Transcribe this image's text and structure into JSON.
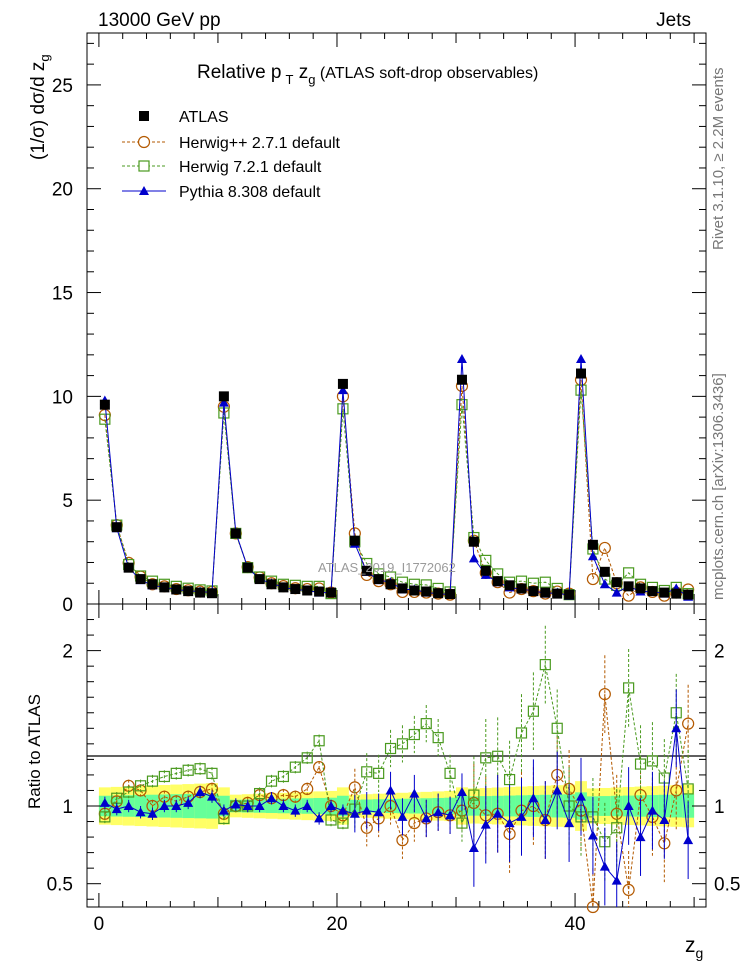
{
  "header": {
    "energy": "13000 GeV pp",
    "process": "Jets"
  },
  "side_text": {
    "rivet": "Rivet 3.1.10, ≥ 2.2M events",
    "source": "mcplots.cern.ch [arXiv:1306.3436]"
  },
  "watermark": "ATLAS_2019_I1772062",
  "chart_data": [
    {
      "type": "scatter",
      "title": "Relative p_T z_g (ATLAS soft-drop observables)",
      "title_parts": {
        "lead": "Relative p",
        "sub1": "T",
        "mid": " z",
        "sub2": "g",
        "rest": " (ATLAS soft-drop observables)"
      },
      "ylabel": "(1/σ) dσ/d z_g",
      "ylabel_parts": {
        "lead": "(1/σ) dσ/d z",
        "sub": "g"
      },
      "xlim": [
        -1,
        51
      ],
      "ylim": [
        0,
        27.5
      ],
      "yticks": [
        0,
        5,
        10,
        15,
        20,
        25
      ],
      "xticks": [
        0,
        20,
        40
      ],
      "legend_position": "top-left",
      "x": [
        0.5,
        1.5,
        2.5,
        3.5,
        4.5,
        5.5,
        6.5,
        7.5,
        8.5,
        9.5,
        10.5,
        11.5,
        12.5,
        13.5,
        14.5,
        15.5,
        16.5,
        17.5,
        18.5,
        19.5,
        20.5,
        21.5,
        22.5,
        23.5,
        24.5,
        25.5,
        26.5,
        27.5,
        28.5,
        29.5,
        30.5,
        31.5,
        32.5,
        33.5,
        34.5,
        35.5,
        36.5,
        37.5,
        38.5,
        39.5,
        40.5,
        41.5,
        42.5,
        43.5,
        44.5,
        45.5,
        46.5,
        47.5,
        48.5,
        49.5
      ],
      "series": [
        {
          "name": "ATLAS",
          "color": "#000000",
          "marker": "filled-square",
          "values": [
            9.6,
            3.7,
            1.75,
            1.2,
            0.95,
            0.8,
            0.7,
            0.62,
            0.55,
            0.52,
            10.0,
            3.4,
            1.75,
            1.2,
            0.95,
            0.8,
            0.72,
            0.65,
            0.6,
            0.55,
            10.6,
            3.05,
            1.6,
            1.2,
            0.95,
            0.75,
            0.65,
            0.6,
            0.52,
            0.48,
            10.8,
            3.0,
            1.6,
            1.1,
            0.9,
            0.75,
            0.62,
            0.55,
            0.5,
            0.45,
            11.1,
            2.85,
            1.55,
            1.05,
            0.85,
            0.75,
            0.62,
            0.55,
            0.5,
            0.45
          ]
        },
        {
          "name": "Herwig++ 2.7.1 default",
          "color": "#b35900",
          "marker": "open-circle",
          "dashed": true,
          "values": [
            9.1,
            3.8,
            1.98,
            1.32,
            0.95,
            0.85,
            0.72,
            0.66,
            0.6,
            0.58,
            9.5,
            3.4,
            1.78,
            1.28,
            1.0,
            0.86,
            0.76,
            0.72,
            0.75,
            0.55,
            10.0,
            3.4,
            1.4,
            1.1,
            0.95,
            0.58,
            0.58,
            0.55,
            0.5,
            0.45,
            10.5,
            3.05,
            1.5,
            1.05,
            0.55,
            0.72,
            0.62,
            0.5,
            0.6,
            0.5,
            10.8,
            1.2,
            2.7,
            1.0,
            0.4,
            0.8,
            0.58,
            0.4,
            0.55,
            0.7
          ]
        },
        {
          "name": "Herwig 7.2.1 default",
          "color": "#4a9a1f",
          "marker": "open-square",
          "dashed": true,
          "values": [
            8.9,
            3.8,
            1.9,
            1.35,
            1.1,
            0.95,
            0.85,
            0.76,
            0.68,
            0.63,
            9.2,
            3.4,
            1.75,
            1.3,
            1.1,
            0.95,
            0.9,
            0.85,
            0.85,
            0.5,
            9.4,
            3.0,
            1.95,
            1.45,
            1.3,
            1.05,
            0.95,
            0.92,
            0.75,
            0.58,
            9.6,
            3.2,
            2.1,
            1.45,
            1.05,
            1.1,
            1.0,
            1.05,
            0.75,
            0.45,
            10.3,
            2.65,
            1.2,
            0.9,
            1.5,
            0.95,
            0.8,
            0.65,
            0.8,
            0.5
          ]
        },
        {
          "name": "Pythia 8.308 default",
          "color": "#0000cc",
          "marker": "filled-triangle",
          "values": [
            9.8,
            3.65,
            1.75,
            1.15,
            0.9,
            0.8,
            0.7,
            0.63,
            0.6,
            0.55,
            9.7,
            3.45,
            1.75,
            1.2,
            1.0,
            0.8,
            0.7,
            0.65,
            0.55,
            0.55,
            10.3,
            2.9,
            1.55,
            1.15,
            1.05,
            0.7,
            0.7,
            0.55,
            0.5,
            0.45,
            11.8,
            2.2,
            1.4,
            1.05,
            0.8,
            0.7,
            0.65,
            0.5,
            0.55,
            0.4,
            11.8,
            2.3,
            0.95,
            0.55,
            0.85,
            0.6,
            0.6,
            0.5,
            0.75,
            0.35
          ]
        }
      ]
    },
    {
      "type": "scatter",
      "title": "",
      "ylabel": "Ratio to ATLAS",
      "xlabel": "z_g",
      "xlabel_parts": {
        "lead": "z",
        "sub": "g"
      },
      "xlim": [
        -1,
        51
      ],
      "ylim": [
        0.35,
        2.3
      ],
      "yticks": [
        0.5,
        1,
        2
      ],
      "xticks": [
        0,
        20,
        40
      ],
      "band_outer_color": "#ffff66",
      "band_inner_color": "#66ff99",
      "x": [
        0.5,
        1.5,
        2.5,
        3.5,
        4.5,
        5.5,
        6.5,
        7.5,
        8.5,
        9.5,
        10.5,
        11.5,
        12.5,
        13.5,
        14.5,
        15.5,
        16.5,
        17.5,
        18.5,
        19.5,
        20.5,
        21.5,
        22.5,
        23.5,
        24.5,
        25.5,
        26.5,
        27.5,
        28.5,
        29.5,
        30.5,
        31.5,
        32.5,
        33.5,
        34.5,
        35.5,
        36.5,
        37.5,
        38.5,
        39.5,
        40.5,
        41.5,
        42.5,
        43.5,
        44.5,
        45.5,
        46.5,
        47.5,
        48.5,
        49.5
      ],
      "series": [
        {
          "name": "Herwig++ 2.7.1 default",
          "color": "#b35900",
          "marker": "open-circle",
          "values": [
            0.95,
            1.03,
            1.13,
            1.1,
            1.0,
            1.06,
            1.03,
            1.06,
            1.09,
            1.11,
            0.95,
            1.0,
            1.02,
            1.07,
            1.05,
            1.07,
            1.06,
            1.11,
            1.25,
            1.0,
            0.94,
            1.12,
            0.86,
            0.92,
            1.0,
            0.78,
            0.89,
            0.92,
            0.96,
            0.94,
            0.97,
            1.02,
            0.94,
            0.95,
            0.82,
            0.97,
            1.0,
            0.91,
            1.2,
            1.11,
            0.97,
            0.35,
            1.72,
            0.95,
            0.46,
            1.07,
            0.93,
            0.76,
            1.1,
            1.53
          ]
        },
        {
          "name": "Herwig 7.2.1 default",
          "color": "#4a9a1f",
          "marker": "open-square",
          "values": [
            0.93,
            1.05,
            1.09,
            1.13,
            1.16,
            1.19,
            1.21,
            1.23,
            1.24,
            1.21,
            0.92,
            1.0,
            1.0,
            1.08,
            1.16,
            1.19,
            1.25,
            1.31,
            1.42,
            0.91,
            0.89,
            0.98,
            1.22,
            1.21,
            1.37,
            1.4,
            1.46,
            1.53,
            1.44,
            1.21,
            0.89,
            1.07,
            1.31,
            1.32,
            1.17,
            1.47,
            1.61,
            1.91,
            1.5,
            1.0,
            0.93,
            0.93,
            0.77,
            0.86,
            1.76,
            1.27,
            1.29,
            1.18,
            1.6,
            1.11
          ]
        },
        {
          "name": "Pythia 8.308 default",
          "color": "#0000cc",
          "marker": "filled-triangle",
          "values": [
            1.02,
            0.98,
            1.0,
            0.96,
            0.95,
            1.0,
            1.0,
            1.02,
            1.09,
            1.06,
            0.97,
            1.01,
            1.0,
            1.0,
            1.05,
            1.0,
            0.97,
            1.0,
            0.92,
            1.0,
            0.97,
            0.95,
            0.97,
            0.96,
            1.1,
            0.93,
            1.08,
            0.92,
            0.96,
            0.94,
            1.09,
            0.73,
            0.88,
            0.95,
            0.89,
            0.93,
            1.05,
            0.91,
            1.1,
            0.89,
            1.06,
            0.81,
            0.61,
            0.52,
            1.0,
            0.8,
            0.97,
            0.91,
            1.5,
            0.78
          ]
        }
      ]
    }
  ]
}
